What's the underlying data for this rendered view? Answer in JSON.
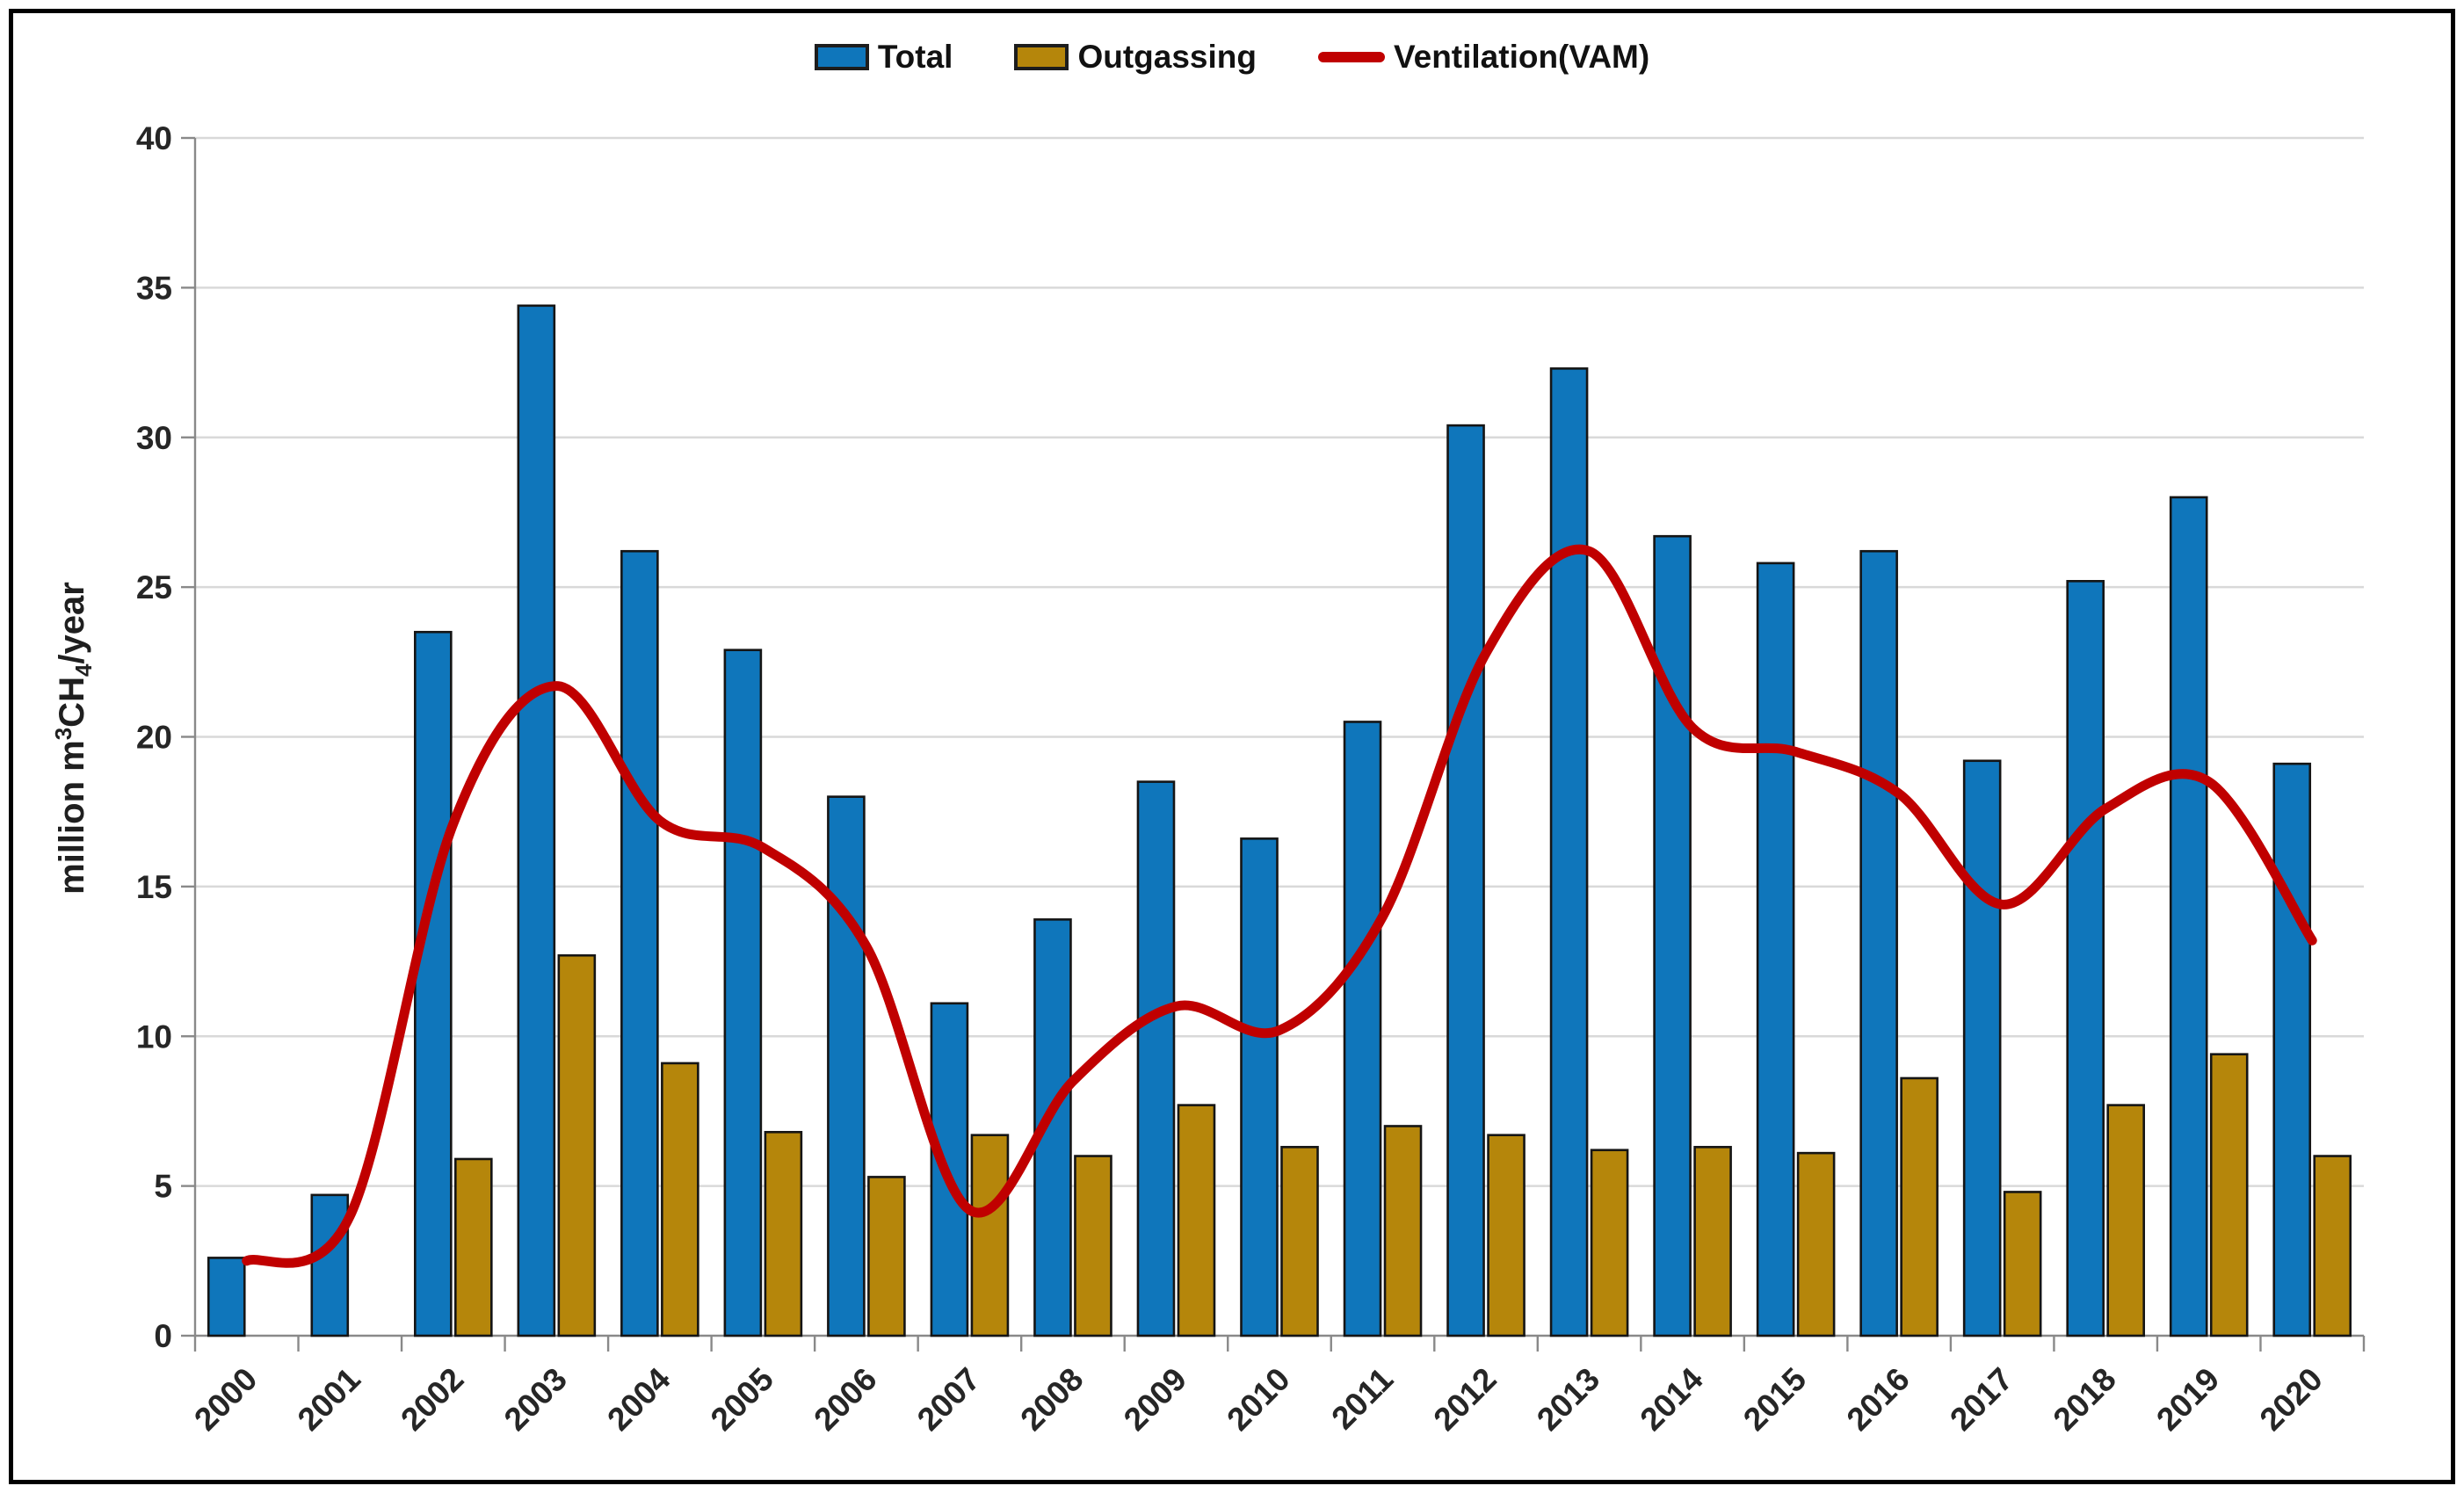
{
  "page": {
    "background": "#FFFFFF",
    "frame_border_color": "#000000"
  },
  "chart_data": {
    "type": "combo-bar-line",
    "title": "",
    "xlabel": "",
    "ylabel": "million m³CH₄/year",
    "ylabel_parts": {
      "p0": "million m",
      "sup": "3",
      "p1": "CH",
      "sub": "4",
      "p2": "/year"
    },
    "ylim": [
      0,
      40
    ],
    "y_tick_step": 5,
    "y_ticks": [
      "0",
      "5",
      "10",
      "15",
      "20",
      "25",
      "30",
      "35",
      "40"
    ],
    "grid": true,
    "legend_position": "top-center",
    "categories": [
      "2000",
      "2001",
      "2002",
      "2003",
      "2004",
      "2005",
      "2006",
      "2007",
      "2008",
      "2009",
      "2010",
      "2011",
      "2012",
      "2013",
      "2014",
      "2015",
      "2016",
      "2017",
      "2018",
      "2019",
      "2020"
    ],
    "series": [
      {
        "name": "Total",
        "type": "bar",
        "color": "#0F76BB",
        "values": [
          2.6,
          4.7,
          23.5,
          34.4,
          26.2,
          22.9,
          18.0,
          11.1,
          13.9,
          18.5,
          16.6,
          20.5,
          30.4,
          32.3,
          26.7,
          25.8,
          26.2,
          19.2,
          25.2,
          28.0,
          19.1
        ]
      },
      {
        "name": "Outgassing",
        "type": "bar",
        "color": "#B5860B",
        "values": [
          null,
          null,
          5.9,
          12.7,
          9.1,
          6.8,
          5.3,
          6.7,
          6.0,
          7.7,
          6.3,
          7.0,
          6.7,
          6.2,
          6.3,
          6.1,
          8.6,
          4.8,
          7.7,
          9.4,
          6.0
        ]
      },
      {
        "name": "Ventilation(VAM)",
        "type": "line",
        "smooth": true,
        "color": "#C00000",
        "values": [
          2.5,
          4.0,
          17.1,
          21.7,
          17.2,
          16.3,
          13.0,
          4.2,
          8.5,
          11.0,
          10.2,
          14.0,
          22.8,
          26.2,
          20.3,
          19.5,
          18.1,
          14.4,
          17.6,
          18.5,
          13.2
        ]
      }
    ],
    "legend": [
      {
        "label": "Total",
        "swatch": "bar",
        "color": "#0F76BB"
      },
      {
        "label": "Outgassing",
        "swatch": "bar",
        "color": "#B5860B"
      },
      {
        "label": "Ventilation(VAM)",
        "swatch": "line",
        "color": "#C00000"
      }
    ],
    "style": {
      "gridline_color": "#D9D9D9",
      "axis_color": "#898989",
      "bar_outline_color": "#151515",
      "tick_text_color": "#262626"
    }
  }
}
